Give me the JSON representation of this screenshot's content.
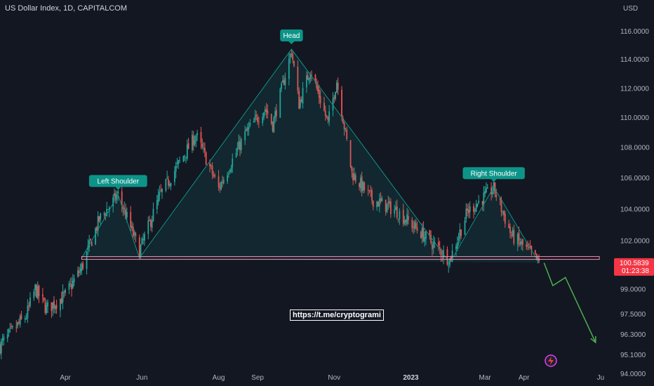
{
  "header": {
    "title": "US Dollar Index, 1D, CAPITALCOM"
  },
  "watermark": {
    "text": "https://t.me/cryptogrami"
  },
  "colors": {
    "background": "#131722",
    "up": "#26a69a",
    "down": "#ef5350",
    "pattern": "#0d9488",
    "neckline": "#f48fb1",
    "projection": "#4caf50",
    "price_tag": "#f23645",
    "axis_text": "#b2b5be"
  },
  "chart_data": {
    "type": "candlestick",
    "instrument": "US Dollar Index",
    "interval": "1D",
    "source": "CAPITALCOM",
    "unit": "USD",
    "x_type": "date",
    "xlim": [
      "2022-02-08",
      "2023-06-10"
    ],
    "ylim": [
      94.0,
      117.3
    ],
    "y_scale": "log",
    "y_ticks": [
      "116.0000",
      "114.0000",
      "112.0000",
      "110.0000",
      "108.0000",
      "106.0000",
      "104.0000",
      "102.0000",
      "99.0000",
      "97.5000",
      "96.3000",
      "95.1000",
      "94.0000"
    ],
    "x_ticks": [
      {
        "label": "Apr",
        "date": "2022-04-01",
        "bold": false
      },
      {
        "label": "Jun",
        "date": "2022-06-01",
        "bold": false
      },
      {
        "label": "Aug",
        "date": "2022-08-01",
        "bold": false
      },
      {
        "label": "Sep",
        "date": "2022-09-01",
        "bold": false
      },
      {
        "label": "Nov",
        "date": "2022-11-01",
        "bold": false
      },
      {
        "label": "2023",
        "date": "2023-01-01",
        "bold": true
      },
      {
        "label": "Mar",
        "date": "2023-03-01",
        "bold": false
      },
      {
        "label": "Apr",
        "date": "2023-04-01",
        "bold": false
      },
      {
        "label": "Ju",
        "date": "2023-06-01",
        "bold": false
      }
    ],
    "price_path": [
      [
        "2022-02-08",
        95.6
      ],
      [
        "2022-03-01",
        97.4
      ],
      [
        "2022-03-08",
        99.0
      ],
      [
        "2022-03-17",
        97.8
      ],
      [
        "2022-04-01",
        98.6
      ],
      [
        "2022-04-14",
        100.3
      ],
      [
        "2022-04-28",
        103.3
      ],
      [
        "2022-05-13",
        104.9
      ],
      [
        "2022-05-30",
        101.3
      ],
      [
        "2022-06-15",
        104.8
      ],
      [
        "2022-07-14",
        108.8
      ],
      [
        "2022-08-01",
        105.3
      ],
      [
        "2022-08-23",
        109.0
      ],
      [
        "2022-09-07",
        110.6
      ],
      [
        "2022-09-13",
        109.5
      ],
      [
        "2022-09-28",
        114.6
      ],
      [
        "2022-10-04",
        110.9
      ],
      [
        "2022-10-13",
        113.3
      ],
      [
        "2022-10-27",
        109.6
      ],
      [
        "2022-11-03",
        112.5
      ],
      [
        "2022-11-15",
        106.3
      ],
      [
        "2022-12-01",
        104.6
      ],
      [
        "2022-12-20",
        103.9
      ],
      [
        "2023-01-10",
        102.4
      ],
      [
        "2023-02-01",
        100.8
      ],
      [
        "2023-02-15",
        103.8
      ],
      [
        "2023-03-08",
        105.3
      ],
      [
        "2023-03-22",
        102.3
      ],
      [
        "2023-04-05",
        101.3
      ],
      [
        "2023-04-13",
        100.58
      ]
    ],
    "pattern": {
      "name": "head and shoulders",
      "points": [
        [
          "2022-04-14",
          100.9
        ],
        [
          "2022-05-13",
          104.9
        ],
        [
          "2022-05-30",
          100.9
        ],
        [
          "2022-09-28",
          114.7
        ],
        [
          "2023-02-01",
          100.6
        ],
        [
          "2023-03-08",
          105.4
        ],
        [
          "2023-04-13",
          100.6
        ]
      ],
      "labels": [
        {
          "text": "Left Shoulder",
          "date": "2022-05-13"
        },
        {
          "text": "Head",
          "date": "2022-09-28"
        },
        {
          "text": "Right Shoulder",
          "date": "2023-03-08"
        }
      ]
    },
    "neckline": {
      "level": 100.9,
      "start": "2022-04-14",
      "end": "2023-05-31"
    },
    "projection": [
      [
        "2023-04-17",
        100.6
      ],
      [
        "2023-04-24",
        99.2
      ],
      [
        "2023-05-04",
        99.7
      ],
      [
        "2023-05-28",
        95.8
      ]
    ],
    "last_price": {
      "value": "100.5839",
      "countdown": "01:23:38"
    }
  }
}
